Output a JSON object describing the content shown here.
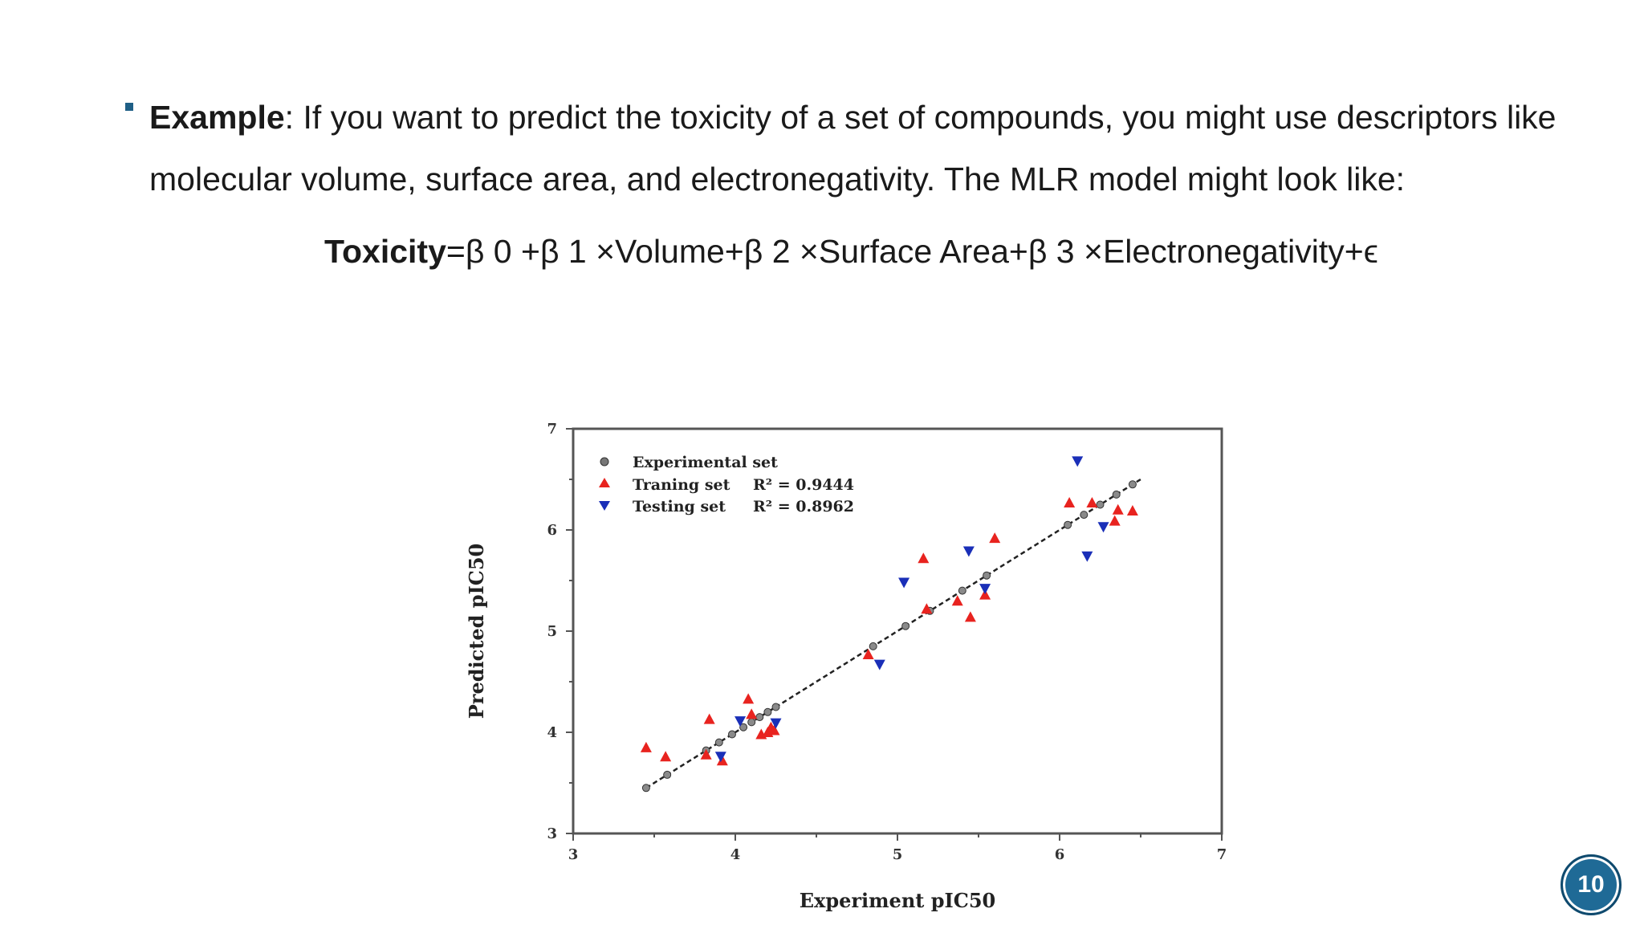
{
  "slide": {
    "bullet": {
      "label": "Example",
      "text": ": If you want to predict the toxicity of a set of compounds, you might use descriptors like molecular volume, surface area, and electronegativity. The MLR model might look like:"
    },
    "formula": {
      "lhs": "Toxicity",
      "rhs": "=β 0 +β 1 ×Volume+β 2 ×Surface Area+β 3 ×Electronegativity+ϵ"
    },
    "page_number": "10"
  },
  "colors": {
    "accent": "#1f5f86",
    "training": "#e8231f",
    "testing": "#1a2fb8",
    "experimental": "#555555"
  },
  "chart_data": {
    "type": "scatter",
    "title": "",
    "xlabel": "Experiment pIC50",
    "ylabel": "Predicted pIC50",
    "xlim": [
      3,
      7
    ],
    "ylim": [
      3,
      7
    ],
    "xticks": [
      "3",
      "4",
      "5",
      "6",
      "7"
    ],
    "yticks": [
      "3",
      "4",
      "5",
      "6",
      "7"
    ],
    "legend_position": "top-left",
    "grid": false,
    "legend": [
      {
        "name": "Experimental set",
        "stat": ""
      },
      {
        "name": "Traning set",
        "stat": "R² = 0.9444"
      },
      {
        "name": "Testing set",
        "stat": "R² = 0.8962"
      }
    ],
    "series": [
      {
        "name": "Experimental set",
        "marker": "circle",
        "color": "#555555",
        "x": [
          3.45,
          3.58,
          3.82,
          3.9,
          3.98,
          4.05,
          4.1,
          4.15,
          4.2,
          4.25,
          4.85,
          5.05,
          5.2,
          5.4,
          5.55,
          6.05,
          6.15,
          6.25,
          6.35,
          6.45
        ],
        "y": [
          3.45,
          3.58,
          3.82,
          3.9,
          3.98,
          4.05,
          4.1,
          4.15,
          4.2,
          4.25,
          4.85,
          5.05,
          5.2,
          5.4,
          5.55,
          6.05,
          6.15,
          6.25,
          6.35,
          6.45
        ]
      },
      {
        "name": "Traning set",
        "marker": "triangle-up",
        "color": "#e8231f",
        "x": [
          3.45,
          3.57,
          3.82,
          3.84,
          3.92,
          4.08,
          4.1,
          4.16,
          4.2,
          4.22,
          4.24,
          4.82,
          5.16,
          5.18,
          5.37,
          5.45,
          5.54,
          5.6,
          6.06,
          6.2,
          6.34,
          6.36,
          6.45
        ],
        "y": [
          3.85,
          3.76,
          3.78,
          4.13,
          3.72,
          4.33,
          4.18,
          3.98,
          4.0,
          4.05,
          4.02,
          4.77,
          5.72,
          5.22,
          5.3,
          5.14,
          5.36,
          5.92,
          6.27,
          6.27,
          6.09,
          6.2,
          6.19
        ]
      },
      {
        "name": "Testing set",
        "marker": "triangle-down",
        "color": "#1a2fb8",
        "x": [
          3.91,
          4.03,
          4.25,
          4.89,
          5.04,
          5.44,
          5.54,
          6.11,
          6.17,
          6.27
        ],
        "y": [
          3.76,
          4.11,
          4.09,
          4.67,
          5.48,
          5.79,
          5.42,
          6.68,
          5.74,
          6.03
        ]
      }
    ],
    "fit_line": {
      "x": [
        3.45,
        6.5
      ],
      "y": [
        3.45,
        6.5
      ]
    }
  }
}
